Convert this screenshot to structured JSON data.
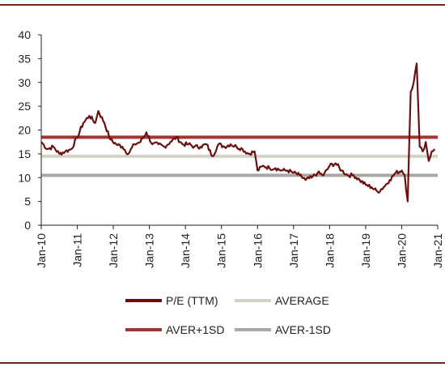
{
  "chart_data": {
    "type": "line",
    "title": "",
    "xlabel": "",
    "ylabel": "",
    "x_tick_labels": [
      "Jan-10",
      "Jan-11",
      "Jan-12",
      "Jan-13",
      "Jan-14",
      "Jan-15",
      "Jan-16",
      "Jan-17",
      "Jan-18",
      "Jan-19",
      "Jan-20",
      "Jan-21"
    ],
    "y_tick_labels": [
      "0",
      "5",
      "10",
      "15",
      "20",
      "25",
      "30",
      "35",
      "40"
    ],
    "ylim": [
      0,
      40
    ],
    "xlim": [
      "Jan-10",
      "Jan-21"
    ],
    "grid": false,
    "legend_position": "bottom",
    "series": [
      {
        "name": "P/E (TTM)",
        "color": "#6b0f0f",
        "x": [
          "Jan-10",
          "Mar-10",
          "May-10",
          "Jul-10",
          "Sep-10",
          "Nov-10",
          "Jan-11",
          "Mar-11",
          "May-11",
          "Jul-11",
          "Aug-11",
          "Oct-11",
          "Dec-11",
          "Feb-12",
          "Apr-12",
          "Jun-12",
          "Aug-12",
          "Oct-12",
          "Dec-12",
          "Feb-13",
          "Apr-13",
          "Jun-13",
          "Aug-13",
          "Oct-13",
          "Dec-13",
          "Feb-14",
          "Apr-14",
          "Jun-14",
          "Aug-14",
          "Oct-14",
          "Dec-14",
          "Feb-15",
          "Apr-15",
          "Jun-15",
          "Aug-15",
          "Oct-15",
          "Dec-15",
          "Jan-16",
          "Mar-16",
          "May-16",
          "Jul-16",
          "Sep-16",
          "Nov-16",
          "Jan-17",
          "Mar-17",
          "May-17",
          "Jul-17",
          "Sep-17",
          "Nov-17",
          "Jan-18",
          "Mar-18",
          "May-18",
          "Jul-18",
          "Sep-18",
          "Nov-18",
          "Jan-19",
          "Mar-19",
          "May-19",
          "Jul-19",
          "Sep-19",
          "Nov-19",
          "Jan-20",
          "Feb-20",
          "Mar-20",
          "Apr-20",
          "May-20",
          "Jun-20",
          "Jul-20",
          "Aug-20",
          "Sep-20",
          "Oct-20",
          "Nov-20",
          "Dec-20"
        ],
        "values": [
          17.5,
          16.0,
          16.5,
          15.0,
          15.5,
          16.0,
          18.5,
          21.5,
          23.0,
          21.5,
          24.0,
          21.5,
          18.0,
          17.0,
          16.5,
          15.0,
          17.0,
          17.5,
          19.5,
          17.0,
          17.0,
          16.5,
          17.5,
          18.5,
          17.0,
          17.0,
          16.5,
          16.5,
          17.0,
          14.5,
          17.0,
          16.5,
          17.0,
          16.5,
          16.0,
          15.0,
          15.5,
          11.5,
          12.5,
          12.0,
          12.0,
          11.5,
          11.5,
          11.0,
          10.5,
          9.5,
          10.0,
          11.0,
          10.5,
          12.5,
          13.0,
          11.5,
          10.5,
          10.5,
          9.5,
          8.5,
          8.0,
          7.0,
          8.0,
          9.5,
          11.0,
          11.5,
          10.5,
          5.0,
          28.0,
          30.0,
          34.0,
          16.5,
          15.5,
          17.5,
          13.5,
          15.5,
          16.0
        ]
      },
      {
        "name": "AVERAGE",
        "color": "#d2d2c6",
        "constant": 14.5
      },
      {
        "name": "AVER+1SD",
        "color": "#a33434",
        "constant": 18.5
      },
      {
        "name": "AVER-1SD",
        "color": "#a8a8a2",
        "constant": 10.5
      }
    ]
  },
  "frame_color": "#7b1e1e"
}
